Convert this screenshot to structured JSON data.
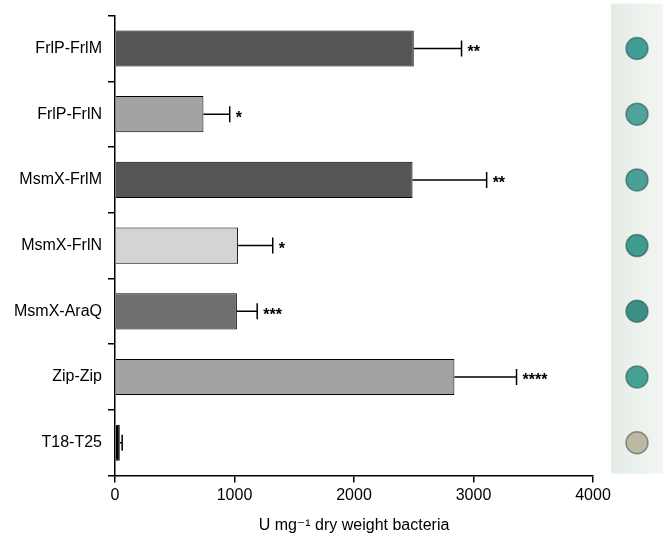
{
  "chart_data": {
    "type": "bar",
    "orientation": "horizontal",
    "x_label": "U mg⁻¹ dry weight bacteria",
    "categories": [
      "FrlP-FrlM",
      "FrlP-FrlN",
      "MsmX-FrlM",
      "MsmX-FrlN",
      "MsmX-AraQ",
      "Zip-Zip",
      "T18-T25"
    ],
    "values": [
      2500,
      740,
      2490,
      1030,
      1020,
      2840,
      40
    ],
    "errors": [
      400,
      220,
      620,
      290,
      170,
      520,
      20
    ],
    "significance": [
      "**",
      "*",
      "**",
      "*",
      "***",
      "****",
      null
    ],
    "colors": [
      "#555555",
      "#a3a3a3",
      "#555555",
      "#d4d4d4",
      "#6e6e6e",
      "#a3a3a3",
      "#000000"
    ],
    "xlim": [
      0,
      4000
    ],
    "xticks": [
      0,
      1000,
      2000,
      3000,
      4000
    ],
    "grid": false
  }
}
